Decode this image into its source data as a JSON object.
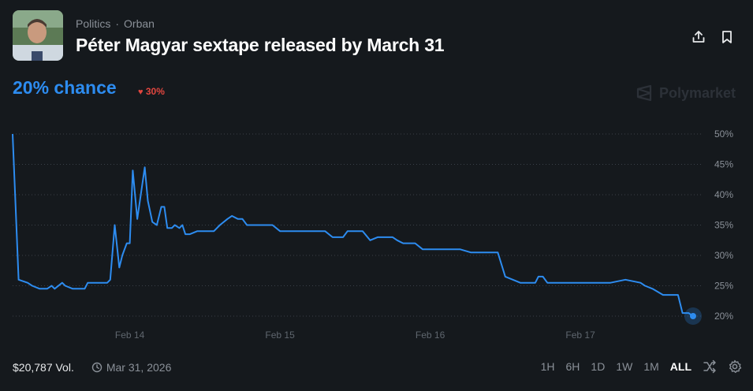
{
  "header": {
    "breadcrumb": [
      "Politics",
      "Orban"
    ],
    "breadcrumb_sep": "·",
    "title": "Péter Magyar sextape released by March 31",
    "share_icon": "upload-icon",
    "bookmark_icon": "bookmark-icon"
  },
  "summary": {
    "chance_label": "20% chance",
    "change_label": "30%",
    "change_direction": "down",
    "brand": "Polymarket"
  },
  "footer": {
    "volume": "$20,787 Vol.",
    "end_date": "Mar 31, 2026",
    "ranges": [
      "1H",
      "6H",
      "1D",
      "1W",
      "1M",
      "ALL"
    ],
    "active_range": "ALL"
  },
  "colors": {
    "line": "#2d8cf0",
    "background": "#15191d",
    "negative": "#e2463f"
  },
  "chart_data": {
    "type": "line",
    "ylim": [
      20,
      50
    ],
    "y_ticks": [
      50,
      45,
      40,
      35,
      30,
      25,
      20
    ],
    "y_tick_labels": [
      "50%",
      "45%",
      "40%",
      "35%",
      "30%",
      "25%",
      "20%"
    ],
    "x_ticks": [
      1.0,
      2.0,
      3.0,
      4.0
    ],
    "x_tick_labels": [
      "Feb 14",
      "Feb 15",
      "Feb 16",
      "Feb 17"
    ],
    "x_unit_note": "x in days after Feb 13 00:00",
    "grid": true,
    "series": [
      {
        "points": [
          [
            0.22,
            50
          ],
          [
            0.26,
            26
          ],
          [
            0.32,
            25.5
          ],
          [
            0.35,
            25
          ],
          [
            0.4,
            24.5
          ],
          [
            0.45,
            24.5
          ],
          [
            0.48,
            25
          ],
          [
            0.5,
            24.5
          ],
          [
            0.55,
            25.5
          ],
          [
            0.57,
            25
          ],
          [
            0.62,
            24.5
          ],
          [
            0.7,
            24.5
          ],
          [
            0.72,
            25.5
          ],
          [
            0.85,
            25.5
          ],
          [
            0.87,
            26
          ],
          [
            0.9,
            35
          ],
          [
            0.93,
            28
          ],
          [
            0.95,
            30
          ],
          [
            0.98,
            32
          ],
          [
            1.0,
            32
          ],
          [
            1.02,
            44
          ],
          [
            1.05,
            36
          ],
          [
            1.1,
            44.5
          ],
          [
            1.12,
            39
          ],
          [
            1.15,
            35.5
          ],
          [
            1.18,
            35
          ],
          [
            1.21,
            38
          ],
          [
            1.23,
            38
          ],
          [
            1.25,
            34.5
          ],
          [
            1.28,
            34.5
          ],
          [
            1.3,
            35
          ],
          [
            1.33,
            34.5
          ],
          [
            1.35,
            35
          ],
          [
            1.37,
            33.5
          ],
          [
            1.4,
            33.5
          ],
          [
            1.45,
            34
          ],
          [
            1.5,
            34
          ],
          [
            1.53,
            34
          ],
          [
            1.56,
            34
          ],
          [
            1.6,
            35
          ],
          [
            1.65,
            36
          ],
          [
            1.68,
            36.5
          ],
          [
            1.72,
            36
          ],
          [
            1.75,
            36
          ],
          [
            1.78,
            35
          ],
          [
            1.85,
            35
          ],
          [
            1.95,
            35
          ],
          [
            2.0,
            34
          ],
          [
            2.1,
            34
          ],
          [
            2.2,
            34
          ],
          [
            2.3,
            34
          ],
          [
            2.35,
            33
          ],
          [
            2.42,
            33
          ],
          [
            2.45,
            34
          ],
          [
            2.55,
            34
          ],
          [
            2.6,
            32.5
          ],
          [
            2.65,
            33
          ],
          [
            2.75,
            33
          ],
          [
            2.78,
            32.5
          ],
          [
            2.82,
            32
          ],
          [
            2.9,
            32
          ],
          [
            2.95,
            31
          ],
          [
            3.05,
            31
          ],
          [
            3.2,
            31
          ],
          [
            3.27,
            30.5
          ],
          [
            3.45,
            30.5
          ],
          [
            3.5,
            26.5
          ],
          [
            3.55,
            26
          ],
          [
            3.6,
            25.5
          ],
          [
            3.7,
            25.5
          ],
          [
            3.72,
            26.5
          ],
          [
            3.75,
            26.5
          ],
          [
            3.78,
            25.5
          ],
          [
            3.85,
            25.5
          ],
          [
            4.0,
            25.5
          ],
          [
            4.2,
            25.5
          ],
          [
            4.3,
            26
          ],
          [
            4.4,
            25.5
          ],
          [
            4.43,
            25
          ],
          [
            4.48,
            24.5
          ],
          [
            4.55,
            23.5
          ],
          [
            4.65,
            23.5
          ],
          [
            4.68,
            20.5
          ],
          [
            4.72,
            20.5
          ],
          [
            4.75,
            20
          ]
        ]
      }
    ]
  }
}
